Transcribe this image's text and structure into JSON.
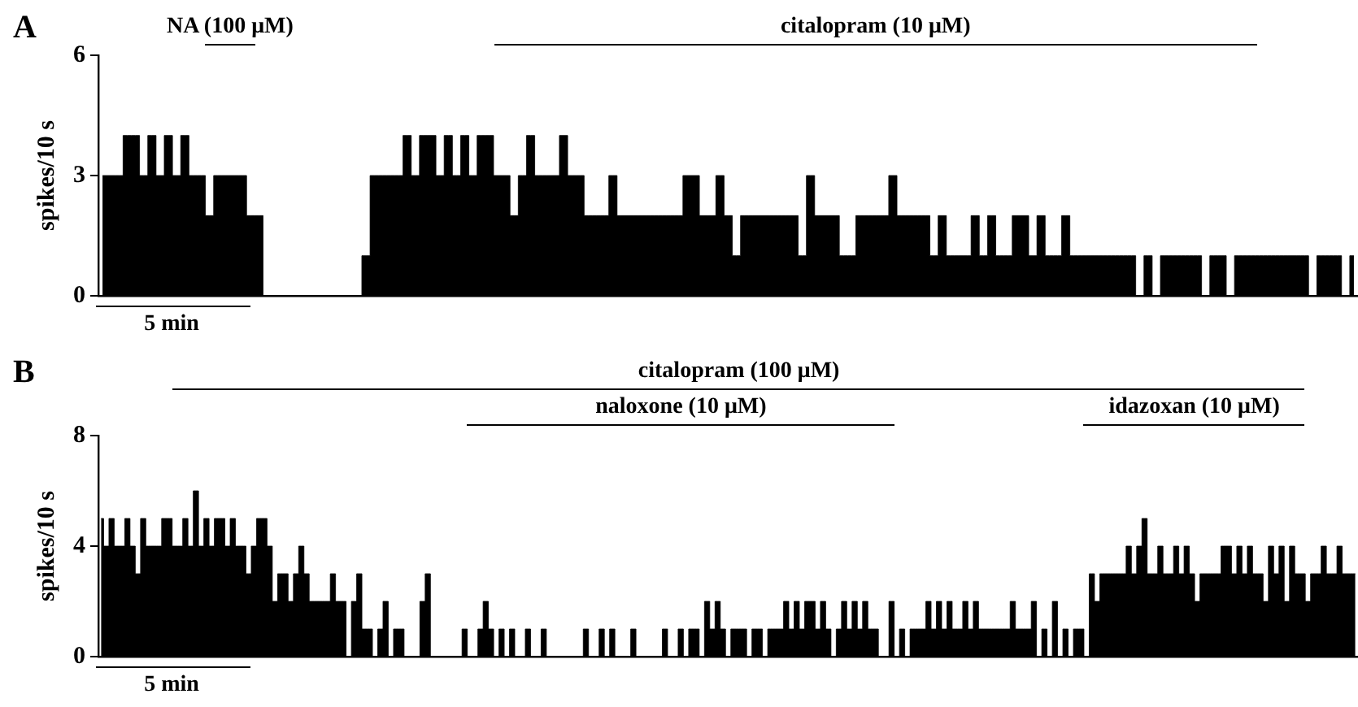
{
  "chart_data": [
    {
      "type": "area",
      "line_style": "solid",
      "marker": "none",
      "title": "A",
      "ylabel": "spikes/10 s",
      "color": "#000000",
      "categories": [
        null,
        null,
        null,
        null,
        null,
        null,
        null,
        null,
        null,
        null,
        null,
        null,
        null,
        null,
        null,
        null,
        null,
        null,
        null,
        null,
        null,
        null,
        null,
        null,
        null,
        null,
        null,
        null,
        null,
        null,
        null,
        null,
        null,
        null,
        null,
        null,
        null,
        null,
        null,
        null,
        null,
        null,
        null,
        null,
        null,
        null,
        null,
        null,
        null,
        null,
        null,
        null,
        null,
        null,
        null,
        null,
        null,
        null,
        null,
        null,
        null,
        null,
        null,
        null,
        null,
        null,
        null,
        null,
        null,
        null,
        null,
        null,
        null,
        null,
        null,
        null,
        null,
        null,
        null,
        null,
        null,
        null,
        null,
        null,
        null,
        null,
        null,
        null,
        null,
        null,
        null,
        null,
        null,
        null,
        null,
        null,
        null,
        null,
        null,
        null,
        null,
        null,
        null,
        null,
        null,
        null,
        null,
        null,
        null,
        null,
        null,
        null,
        null,
        null,
        null,
        null,
        null,
        null,
        null,
        null,
        null,
        null,
        null,
        null,
        null,
        null,
        null,
        null,
        null,
        null,
        null,
        null,
        null,
        null,
        null,
        null,
        null,
        null,
        null,
        null,
        null,
        null,
        null,
        null,
        null,
        null,
        null,
        null,
        null,
        null,
        null,
        null,
        null
      ],
      "values": [
        3,
        3,
        3,
        4,
        4,
        3,
        4,
        3,
        4,
        3,
        4,
        3,
        3,
        2,
        3,
        3,
        3,
        3,
        2,
        2,
        0,
        0,
        0,
        0,
        0,
        0,
        0,
        0,
        0,
        0,
        0,
        0,
        1,
        3,
        3,
        3,
        3,
        4,
        3,
        4,
        4,
        3,
        4,
        3,
        4,
        3,
        4,
        4,
        3,
        3,
        2,
        3,
        4,
        3,
        3,
        3,
        4,
        3,
        3,
        2,
        2,
        2,
        3,
        2,
        2,
        2,
        2,
        2,
        2,
        2,
        2,
        3,
        3,
        2,
        2,
        3,
        2,
        1,
        2,
        2,
        2,
        2,
        2,
        2,
        2,
        1,
        3,
        2,
        2,
        2,
        1,
        1,
        2,
        2,
        2,
        2,
        3,
        2,
        2,
        2,
        2,
        1,
        2,
        1,
        1,
        1,
        2,
        1,
        2,
        1,
        1,
        2,
        2,
        1,
        2,
        1,
        1,
        2,
        1,
        1,
        1,
        1,
        1,
        1,
        1,
        1,
        0,
        1,
        0,
        1,
        1,
        1,
        1,
        1,
        0,
        1,
        1,
        0,
        1,
        1,
        1,
        1,
        1,
        1,
        1,
        1,
        1,
        0,
        1,
        1,
        1,
        0,
        1
      ],
      "ylim": [
        0,
        6
      ],
      "yticks": [
        0,
        3,
        6
      ],
      "tick_labels": "y",
      "grid": false,
      "annotations": [
        "NA (100 μM)",
        "citalopram (10 μM)",
        "5 min"
      ]
    },
    {
      "type": "area",
      "line_style": "solid",
      "marker": "none",
      "title": "B",
      "ylabel": "spikes/10 s",
      "color": "#000000",
      "categories": [
        null,
        null,
        null,
        null,
        null,
        null,
        null,
        null,
        null,
        null,
        null,
        null,
        null,
        null,
        null,
        null,
        null,
        null,
        null,
        null,
        null,
        null,
        null,
        null,
        null,
        null,
        null,
        null,
        null,
        null,
        null,
        null,
        null,
        null,
        null,
        null,
        null,
        null,
        null,
        null,
        null,
        null,
        null,
        null,
        null,
        null,
        null,
        null,
        null,
        null,
        null,
        null,
        null,
        null,
        null,
        null,
        null,
        null,
        null,
        null,
        null,
        null,
        null,
        null,
        null,
        null,
        null,
        null,
        null,
        null,
        null,
        null,
        null,
        null,
        null,
        null,
        null,
        null,
        null,
        null,
        null,
        null,
        null,
        null,
        null,
        null,
        null,
        null,
        null,
        null,
        null,
        null,
        null,
        null,
        null,
        null,
        null,
        null,
        null,
        null,
        null,
        null,
        null,
        null,
        null,
        null,
        null,
        null,
        null,
        null,
        null,
        null,
        null,
        null,
        null,
        null,
        null,
        null,
        null,
        null,
        null,
        null,
        null,
        null,
        null,
        null,
        null,
        null,
        null,
        null,
        null,
        null,
        null,
        null,
        null,
        null,
        null,
        null,
        null,
        null,
        null,
        null,
        null,
        null,
        null,
        null,
        null,
        null,
        null,
        null,
        null,
        null,
        null,
        null,
        null,
        null,
        null,
        null,
        null,
        null,
        null,
        null,
        null,
        null,
        null,
        null,
        null,
        null,
        null,
        null,
        null,
        null,
        null,
        null,
        null,
        null,
        null,
        null,
        null,
        null,
        null,
        null,
        null,
        null,
        null,
        null,
        null,
        null,
        null,
        null,
        null,
        null,
        null,
        null,
        null,
        null,
        null,
        null,
        null,
        null,
        null,
        null,
        null,
        null,
        null,
        null,
        null,
        null,
        null,
        null,
        null,
        null,
        null,
        null,
        null,
        null,
        null,
        null,
        null,
        null,
        null,
        null,
        null,
        null,
        null,
        null,
        null,
        null,
        null,
        null,
        null,
        null,
        null,
        null,
        null,
        null,
        null,
        null,
        null
      ],
      "values": [
        5,
        4,
        5,
        4,
        4,
        5,
        4,
        3,
        5,
        4,
        4,
        4,
        5,
        5,
        4,
        4,
        5,
        4,
        6,
        4,
        5,
        4,
        5,
        5,
        4,
        5,
        4,
        4,
        3,
        4,
        5,
        5,
        4,
        2,
        3,
        3,
        2,
        3,
        4,
        3,
        2,
        2,
        2,
        2,
        3,
        2,
        2,
        0,
        2,
        3,
        1,
        1,
        0,
        1,
        2,
        0,
        1,
        1,
        0,
        0,
        0,
        2,
        3,
        0,
        0,
        0,
        0,
        0,
        0,
        1,
        0,
        0,
        1,
        2,
        1,
        0,
        1,
        0,
        1,
        0,
        0,
        1,
        0,
        0,
        1,
        0,
        0,
        0,
        0,
        0,
        0,
        0,
        1,
        0,
        0,
        1,
        0,
        1,
        0,
        0,
        0,
        1,
        0,
        0,
        0,
        0,
        0,
        1,
        0,
        0,
        1,
        0,
        1,
        1,
        0,
        2,
        1,
        2,
        1,
        0,
        1,
        1,
        1,
        0,
        1,
        1,
        0,
        1,
        1,
        1,
        2,
        1,
        2,
        1,
        2,
        2,
        1,
        2,
        1,
        0,
        1,
        2,
        1,
        2,
        1,
        2,
        1,
        1,
        0,
        0,
        2,
        0,
        1,
        0,
        1,
        1,
        1,
        2,
        1,
        2,
        1,
        2,
        1,
        1,
        2,
        1,
        2,
        1,
        1,
        1,
        1,
        1,
        1,
        2,
        1,
        1,
        1,
        2,
        0,
        1,
        0,
        2,
        0,
        1,
        0,
        1,
        1,
        0,
        3,
        2,
        3,
        3,
        3,
        3,
        3,
        4,
        3,
        4,
        5,
        3,
        3,
        4,
        3,
        3,
        4,
        3,
        4,
        3,
        2,
        3,
        3,
        3,
        3,
        4,
        4,
        3,
        4,
        3,
        4,
        3,
        3,
        2,
        4,
        3,
        4,
        2,
        4,
        3,
        3,
        2,
        3,
        3,
        4,
        3,
        3,
        4,
        3,
        3,
        3
      ],
      "ylim": [
        0,
        8
      ],
      "yticks": [
        0,
        4,
        8
      ],
      "tick_labels": "y",
      "grid": false,
      "annotations": [
        "citalopram (100 μM)",
        "naloxone (10 μM)",
        "idazoxan (10 μM)",
        "5 min"
      ]
    }
  ]
}
